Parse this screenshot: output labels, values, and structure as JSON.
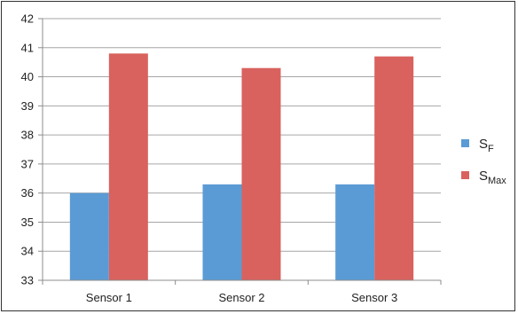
{
  "chart_data": {
    "type": "bar",
    "categories": [
      "Sensor 1",
      "Sensor 2",
      "Sensor 3"
    ],
    "series": [
      {
        "name_main": "S",
        "name_sub": "F",
        "name": "SF",
        "color": "#5b9bd5",
        "values": [
          36.0,
          36.3,
          36.3
        ]
      },
      {
        "name_main": "S",
        "name_sub": "Max",
        "name": "SMax",
        "color": "#d9625e",
        "values": [
          40.8,
          40.3,
          40.7
        ]
      }
    ],
    "y_ticks": [
      "33",
      "34",
      "35",
      "36",
      "37",
      "38",
      "39",
      "40",
      "41",
      "42"
    ],
    "ylim": [
      33,
      42
    ],
    "grid": true,
    "legend_position": "right",
    "title": "",
    "xlabel": "",
    "ylabel": ""
  }
}
